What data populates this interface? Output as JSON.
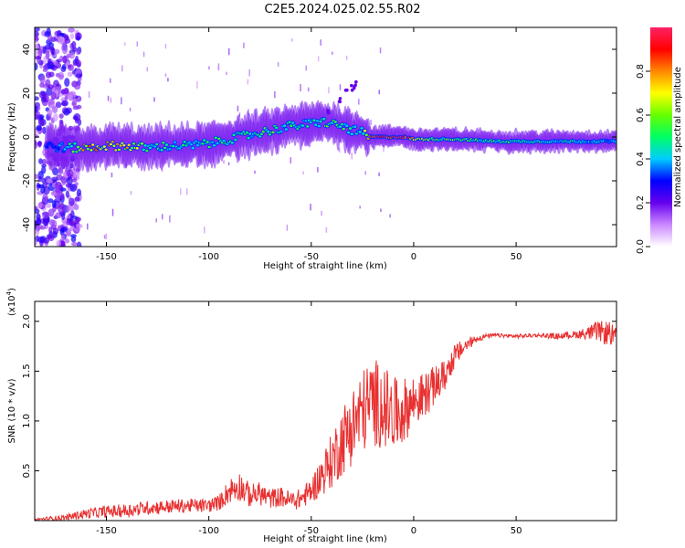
{
  "title": "C2E5.2024.025.02.55.R02",
  "colors": {
    "snr_line": "#e83030",
    "frame": "#000000"
  },
  "chart_data": [
    {
      "type": "heatmap",
      "title": "C2E5.2024.025.02.55.R02",
      "xlabel": "Height of straight line (km)",
      "ylabel": "Frequency (Hz)",
      "xlim": [
        -185,
        99
      ],
      "ylim": [
        -50,
        50
      ],
      "xticks": [
        -150,
        -100,
        -50,
        0,
        50
      ],
      "yticks": [
        -40,
        -20,
        0,
        20,
        40
      ],
      "xtick_labels": [
        "-150",
        "-100",
        "-50",
        "0",
        "50"
      ],
      "ytick_labels": [
        "-40",
        "-20",
        "0",
        "20",
        "40"
      ],
      "colorbar": {
        "label": "Normalized spectral amplitude",
        "range": [
          0,
          1
        ],
        "ticks": [
          0.0,
          0.2,
          0.4,
          0.6,
          0.8
        ],
        "tick_labels": [
          "0.0",
          "0.2",
          "0.4",
          "0.6",
          "0.8"
        ],
        "colormap": [
          "#ffffff",
          "#cc88ff",
          "#6600ee",
          "#0000ff",
          "#00ccff",
          "#00ff66",
          "#66ff00",
          "#ffff00",
          "#ff8800",
          "#ff0000",
          "#ff2266"
        ]
      },
      "ridge": {
        "x": [
          -178,
          -170,
          -160,
          -150,
          -140,
          -130,
          -120,
          -110,
          -100,
          -90,
          -80,
          -70,
          -60,
          -50,
          -45,
          -40,
          -35,
          -30,
          -25,
          -22,
          -15,
          -5,
          0,
          10,
          20,
          40,
          60,
          80,
          99
        ],
        "freq": [
          -4,
          -5,
          -5,
          -4,
          -4,
          -5,
          -4,
          -4,
          -3,
          -1,
          1,
          3,
          5,
          6,
          7,
          6,
          5,
          3,
          2,
          0,
          0,
          0,
          -1,
          -1,
          -1,
          -2,
          -2,
          -2,
          -2
        ],
        "amplitude": [
          0.25,
          0.4,
          0.75,
          0.7,
          0.7,
          0.5,
          0.45,
          0.45,
          0.45,
          0.5,
          0.45,
          0.5,
          0.45,
          0.45,
          0.5,
          0.5,
          0.5,
          0.45,
          0.45,
          0.9,
          0.9,
          0.9,
          0.7,
          0.55,
          0.55,
          0.5,
          0.45,
          0.45,
          0.35
        ]
      }
    },
    {
      "type": "line",
      "xlabel": "Height of straight line (km)",
      "ylabel": "SNR (10 * v/v)",
      "y_multiplier": "(x10",
      "y_multiplier_exp": "4",
      "y_multiplier_close": ")",
      "xlim": [
        -185,
        99
      ],
      "ylim": [
        0,
        22000
      ],
      "xticks": [
        -150,
        -100,
        -50,
        0,
        50
      ],
      "yticks": [
        5000,
        10000,
        15000,
        20000
      ],
      "xtick_labels": [
        "-150",
        "-100",
        "-50",
        "0",
        "50"
      ],
      "ytick_labels": [
        "0.5",
        "1.0",
        "1.5",
        "2.0"
      ],
      "series": [
        {
          "x": [
            -185,
            -170,
            -160,
            -150,
            -140,
            -130,
            -120,
            -110,
            -100,
            -95,
            -90,
            -85,
            -80,
            -75,
            -70,
            -65,
            -60,
            -55,
            -50,
            -45,
            -40,
            -35,
            -30,
            -25,
            -20,
            -15,
            -10,
            -5,
            0,
            5,
            10,
            15,
            20,
            25,
            30,
            35,
            40,
            50,
            60,
            70,
            80,
            85,
            90,
            95,
            99
          ],
          "y": [
            100,
            300,
            700,
            900,
            1000,
            1300,
            1400,
            1500,
            1500,
            1800,
            3000,
            3500,
            2500,
            2700,
            2200,
            2400,
            2000,
            2200,
            3000,
            4500,
            6000,
            8000,
            9500,
            11000,
            12000,
            11500,
            10500,
            11000,
            12000,
            12500,
            13500,
            14500,
            16500,
            17500,
            18200,
            18500,
            18600,
            18500,
            18600,
            18500,
            18700,
            18800,
            19000,
            18800,
            18500
          ],
          "noise": [
            150,
            300,
            500,
            600,
            700,
            700,
            700,
            700,
            700,
            800,
            1300,
            1500,
            1200,
            1200,
            1000,
            1000,
            1000,
            1000,
            1300,
            2000,
            2800,
            3500,
            4000,
            4200,
            4500,
            4300,
            3800,
            3300,
            2700,
            2300,
            2000,
            1600,
            1200,
            800,
            400,
            250,
            200,
            200,
            200,
            300,
            400,
            700,
            1000,
            1300,
            800
          ]
        }
      ]
    }
  ]
}
